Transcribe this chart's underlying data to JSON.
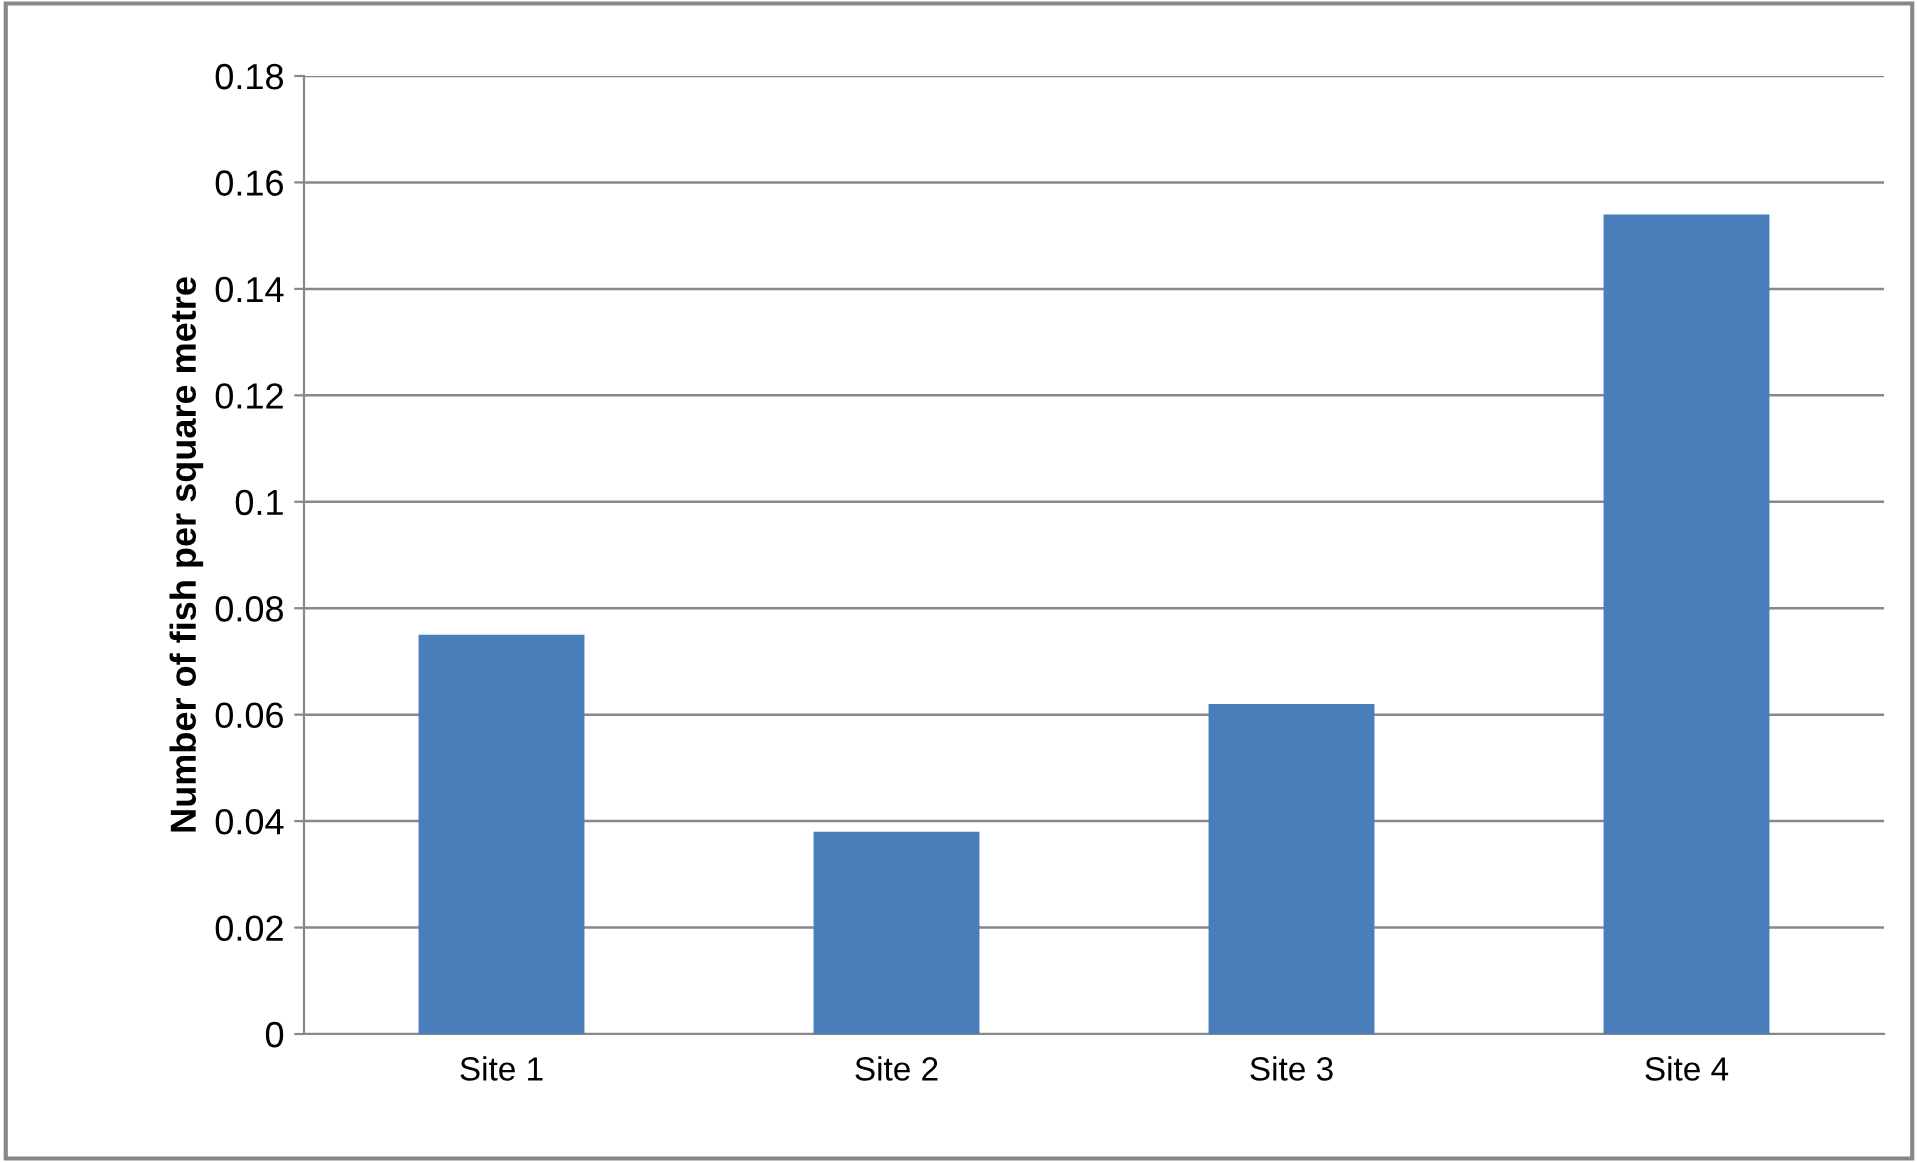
{
  "chart_data": {
    "type": "bar",
    "ylabel": "Number of fish per square metre",
    "categories": [
      "Site 1",
      "Site 2",
      "Site 3",
      "Site 4"
    ],
    "values": [
      0.075,
      0.038,
      0.062,
      0.154
    ],
    "color": "#4a7ebb",
    "ylim": [
      0,
      0.18
    ],
    "yticks": [
      0,
      0.02,
      0.04,
      0.06,
      0.08,
      0.1,
      0.12,
      0.14,
      0.16,
      0.18
    ],
    "grid": "y"
  }
}
